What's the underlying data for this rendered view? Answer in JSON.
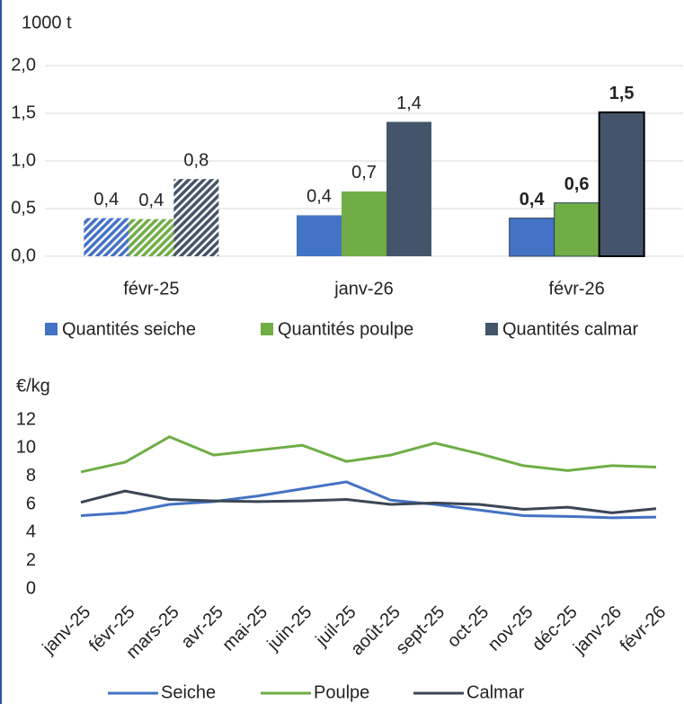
{
  "chart_data": [
    {
      "type": "bar",
      "ylabel": "1000 t",
      "categories": [
        "févr-25",
        "janv-26",
        "févr-26"
      ],
      "series": [
        {
          "name": "Quantités seiche",
          "color": "#4472c4",
          "values": [
            0.4,
            0.43,
            0.4
          ],
          "value_labels": [
            "0,4",
            "0,4",
            "0,4"
          ]
        },
        {
          "name": "Quantités poulpe",
          "color": "#70ad47",
          "values": [
            0.39,
            0.68,
            0.56
          ],
          "value_labels": [
            "0,4",
            "0,7",
            "0,6"
          ]
        },
        {
          "name": "Quantités calmar",
          "color": "#44546a",
          "values": [
            0.81,
            1.41,
            1.51
          ],
          "value_labels": [
            "0,8",
            "1,4",
            "1,5"
          ]
        }
      ],
      "ylim": [
        0,
        2
      ],
      "yticks": [
        {
          "value": 0,
          "label": "0,0"
        },
        {
          "value": 0.5,
          "label": "0,5"
        },
        {
          "value": 1,
          "label": "1,0"
        },
        {
          "value": 1.5,
          "label": "1,5"
        },
        {
          "value": 2,
          "label": "2,0"
        }
      ],
      "grid": true
    },
    {
      "type": "line",
      "ylabel": "€/kg",
      "categories": [
        "janv-25",
        "févr-25",
        "mars-25",
        "avr-25",
        "mai-25",
        "juin-25",
        "juil-25",
        "août-25",
        "sept-25",
        "oct-25",
        "nov-25",
        "déc-25",
        "janv-26",
        "févr-26"
      ],
      "series": [
        {
          "name": "Seiche",
          "color": "#4472c4",
          "values": [
            5.2,
            5.4,
            6.0,
            6.2,
            6.6,
            7.1,
            7.6,
            6.3,
            6.0,
            5.6,
            5.2,
            5.15,
            5.05,
            5.1
          ]
        },
        {
          "name": "Poulpe",
          "color": "#70ad47",
          "values": [
            8.3,
            9.0,
            10.8,
            9.5,
            9.85,
            10.2,
            9.05,
            9.5,
            10.35,
            9.6,
            8.75,
            8.4,
            8.75,
            8.65
          ]
        },
        {
          "name": "Calmar",
          "color": "#3b4656",
          "values": [
            6.15,
            6.95,
            6.35,
            6.25,
            6.2,
            6.25,
            6.35,
            6.0,
            6.1,
            6.0,
            5.65,
            5.8,
            5.4,
            5.7
          ]
        }
      ],
      "ylim": [
        0,
        12
      ],
      "yticks": [
        0,
        2,
        4,
        6,
        8,
        10,
        12
      ],
      "grid": false
    }
  ]
}
